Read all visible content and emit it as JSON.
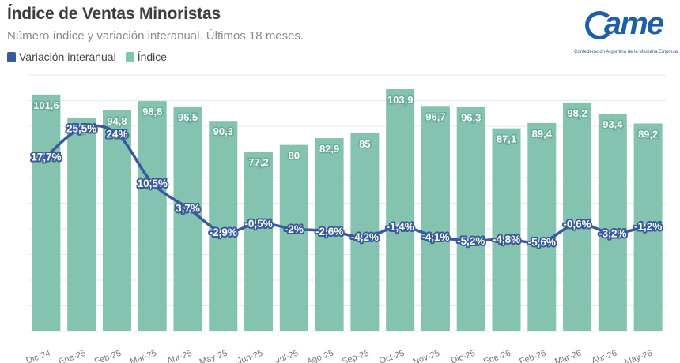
{
  "header": {
    "title": "Índice de Ventas Minoristas",
    "subtitle": "Número índice y variación interanual. Últimos 18 meses."
  },
  "logo": {
    "word": "ame",
    "tagline": "Confederación Argentina de la Mediana Empresa"
  },
  "colors": {
    "bar": "#84c3b0",
    "bar_label_bg": "#6aaa98",
    "line": "#3a5a9c",
    "grid": "#e3ebe8",
    "axis_text": "#777777"
  },
  "chart_data": {
    "type": "bar",
    "title": "Índice de Ventas Minoristas",
    "subtitle": "Número índice y variación interanual. Últimos 18 meses.",
    "categories": [
      "Dic-24",
      "Ene-25",
      "Feb-25",
      "Mar-25",
      "Abr-25",
      "May-25",
      "Jun-25",
      "Jul-25",
      "Ago-25",
      "Sep-25",
      "Oct-25",
      "Nov-25",
      "Dic-25",
      "Ene-26",
      "Feb-26",
      "Mar-26",
      "Abr-26",
      "May-26"
    ],
    "series": [
      {
        "name": "Índice",
        "type": "bar",
        "values": [
          101.6,
          91.4,
          94.8,
          98.8,
          96.5,
          90.3,
          77.2,
          80,
          82.9,
          85,
          103.9,
          96.7,
          96.3,
          87.1,
          89.4,
          98.2,
          93.4,
          89.2
        ],
        "labels": [
          "101,6",
          "91,4",
          "94,8",
          "98,8",
          "96,5",
          "90,3",
          "77,2",
          "80",
          "82,9",
          "85",
          "103,9",
          "96,7",
          "96,3",
          "87,1",
          "89,4",
          "98,2",
          "93,4",
          "89,2"
        ]
      },
      {
        "name": "Variación interanual",
        "type": "line",
        "values": [
          17.7,
          25.5,
          24,
          10.5,
          3.7,
          -2.9,
          -0.5,
          -2,
          -2.6,
          -4.2,
          -1.4,
          -4.1,
          -5.2,
          -4.8,
          -5.6,
          -0.6,
          -3.2,
          -1.2
        ],
        "labels": [
          "17,7%",
          "25,5%",
          "24%",
          "10,5%",
          "3,7%",
          "-2,9%",
          "-0,5%",
          "-2%",
          "-2,6%",
          "-4,2%",
          "-1,4%",
          "-4,1%",
          "-5,2%",
          "-4,8%",
          "-5,6%",
          "-0,6%",
          "-3,2%",
          "-1,2%"
        ]
      }
    ],
    "bar_axis": {
      "ylim": [
        0,
        110
      ]
    },
    "line_axis": {
      "ylim": [
        -30,
        40
      ]
    },
    "grid": true,
    "legend": "top-left"
  }
}
